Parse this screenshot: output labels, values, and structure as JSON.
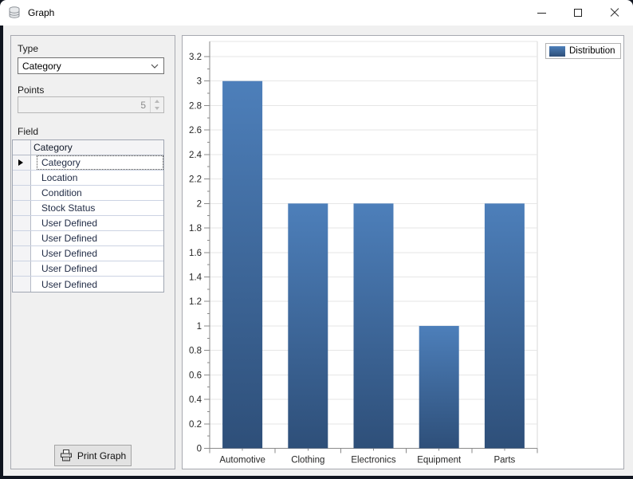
{
  "window": {
    "title": "Graph"
  },
  "left_panel": {
    "type_label": "Type",
    "type_value": "Category",
    "points_label": "Points",
    "points_value": "5",
    "field_label": "Field",
    "grid": {
      "column_header": "Category",
      "rows": [
        "Category",
        "Location",
        "Condition",
        "Stock Status",
        "User Defined",
        "User Defined",
        "User Defined",
        "User Defined",
        "User Defined"
      ],
      "selected_index": 0
    },
    "print_button_label": "Print Graph"
  },
  "chart_data": {
    "type": "bar",
    "title": "",
    "categories": [
      "Automotive",
      "Clothing",
      "Electronics",
      "Equipment",
      "Parts"
    ],
    "series": [
      {
        "name": "Distribution",
        "values": [
          3,
          2,
          2,
          1,
          2
        ]
      }
    ],
    "xlabel": "",
    "ylabel": "",
    "ylim": [
      0,
      3.2
    ],
    "ytick_step": 0.2,
    "grid": true,
    "legend_position": "top-right",
    "colors": {
      "bar_top": "#4d7fba",
      "bar_bottom": "#2e4f79",
      "gridline": "#e6e6e6",
      "axis": "#8a8a8a",
      "label_text": "#262626"
    }
  }
}
